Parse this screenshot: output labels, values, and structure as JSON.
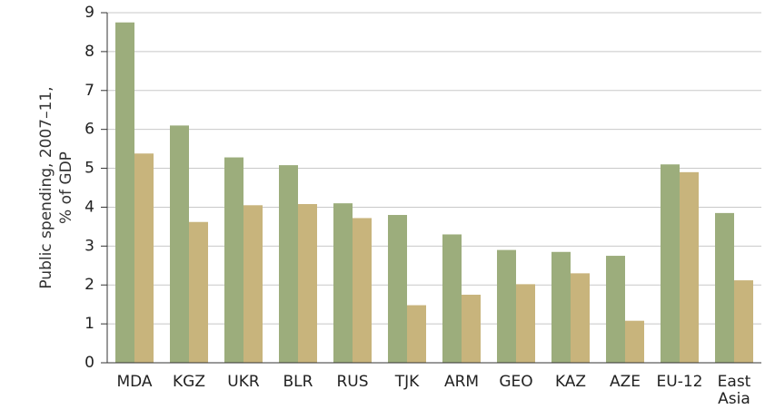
{
  "chart_data": {
    "type": "bar",
    "ylabel": "Public spending, 2007–11, % of GDP",
    "categories": [
      "MDA",
      "KGZ",
      "UKR",
      "BLR",
      "RUS",
      "TJK",
      "ARM",
      "GEO",
      "KAZ",
      "AZE",
      "EU-12",
      "East Asia"
    ],
    "series": [
      {
        "color": "#9cad7c",
        "values": [
          8.75,
          6.1,
          5.28,
          5.08,
          4.1,
          3.8,
          3.3,
          2.9,
          2.85,
          2.75,
          5.1,
          3.85
        ]
      },
      {
        "color": "#c8b47c",
        "values": [
          5.38,
          3.62,
          4.05,
          4.08,
          3.72,
          1.48,
          1.75,
          2.02,
          2.3,
          1.08,
          4.9,
          2.12
        ]
      }
    ],
    "ylim": [
      0,
      9
    ],
    "yticks": [
      0,
      1,
      2,
      3,
      4,
      5,
      6,
      7,
      8,
      9
    ],
    "grid": true
  }
}
